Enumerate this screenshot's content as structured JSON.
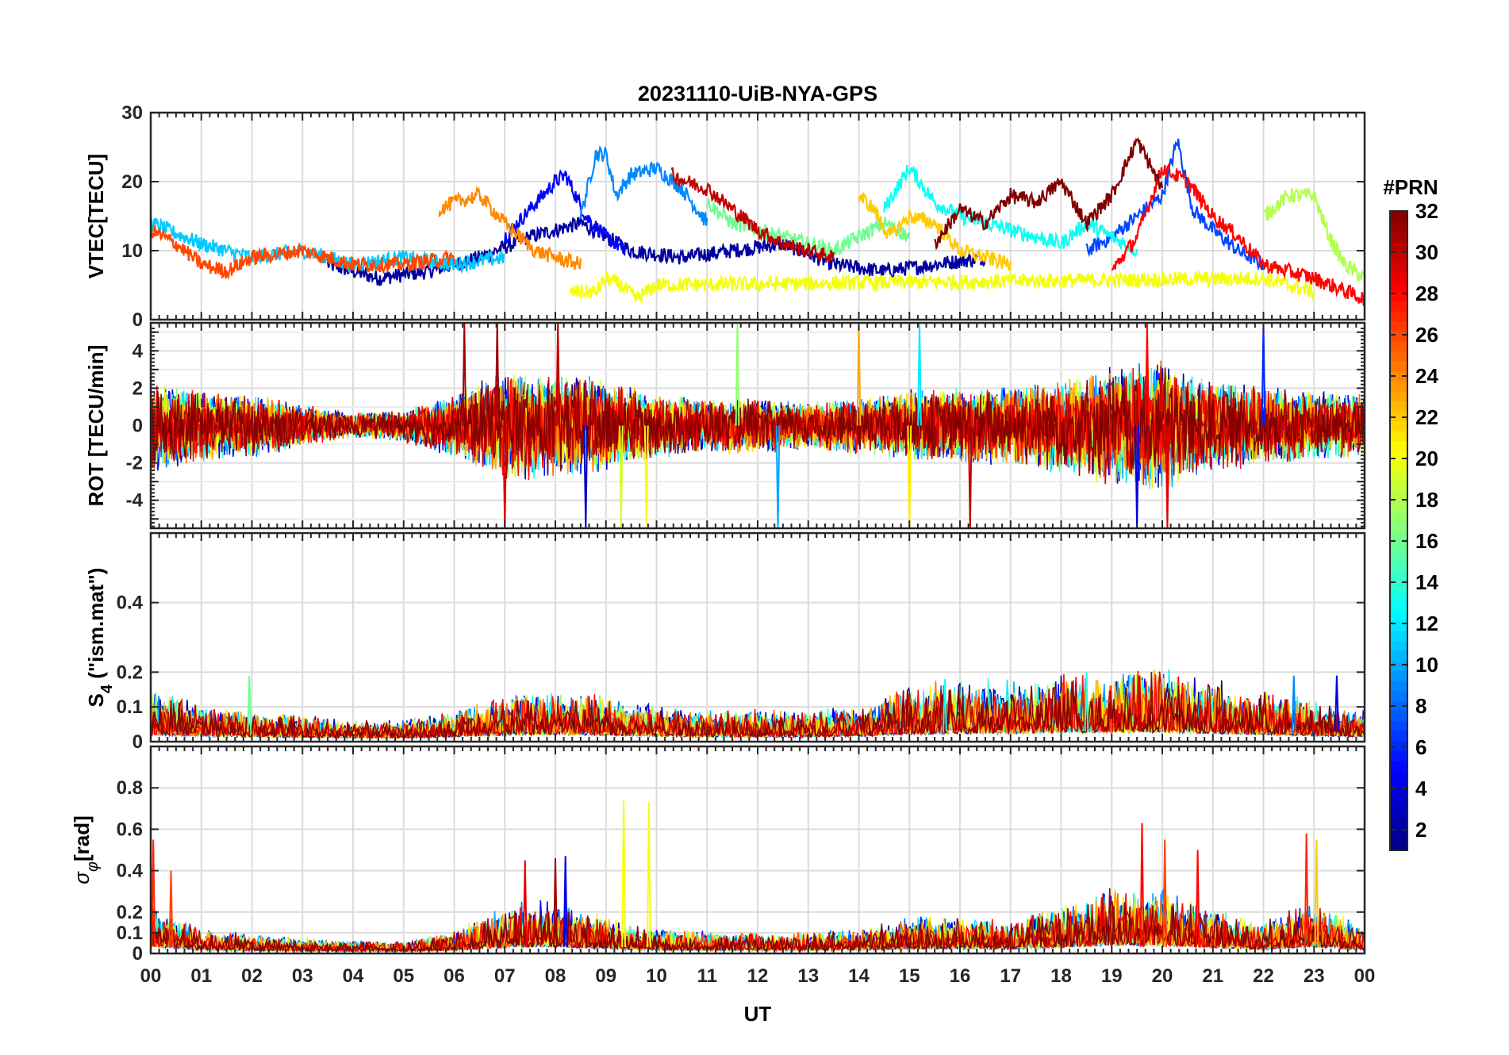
{
  "chart_data": {
    "type": "line",
    "title": "20231110-UiB-NYA-GPS",
    "xlabel": "UT",
    "x_ticks": [
      "00",
      "01",
      "02",
      "03",
      "04",
      "05",
      "06",
      "07",
      "08",
      "09",
      "10",
      "11",
      "12",
      "13",
      "14",
      "15",
      "16",
      "17",
      "18",
      "19",
      "20",
      "21",
      "22",
      "23",
      "00"
    ],
    "xlim": [
      0,
      24
    ],
    "colorbar": {
      "title": "#PRN",
      "range": [
        1,
        32
      ],
      "tick_labels": [
        "2",
        "4",
        "6",
        "8",
        "10",
        "12",
        "14",
        "16",
        "18",
        "20",
        "22",
        "24",
        "26",
        "28",
        "30",
        "32"
      ],
      "colormap": "jet"
    },
    "panels": [
      {
        "ylabel": "VTEC[TECU]",
        "ylim": [
          0,
          30
        ],
        "y_ticks": [
          0,
          10,
          20,
          30
        ],
        "y_tick_labels": [
          "0",
          "10",
          "20",
          "30"
        ],
        "description_series": "per-PRN VTEC traces",
        "series": [
          {
            "name": "PRN 2",
            "prn": 2,
            "x": [
              3.5,
              4.5,
              5.5,
              6.5,
              7.5,
              8.5,
              9.5,
              10.5,
              11.5,
              12.5,
              13.5,
              14.5,
              15.5,
              16.5
            ],
            "values": [
              8,
              6,
              7,
              9,
              12,
              14,
              10,
              9,
              10,
              11,
              8,
              7,
              8,
              9
            ]
          },
          {
            "name": "PRN 5",
            "prn": 5,
            "x": [
              7,
              7.5,
              8,
              8.2,
              8.6,
              9,
              9.4
            ],
            "values": [
              12,
              16,
              20,
              21,
              15,
              12,
              10
            ]
          },
          {
            "name": "PRN 7",
            "prn": 7,
            "x": [
              18.5,
              19,
              19.5,
              20,
              20.3,
              20.6,
              21,
              21.5,
              22
            ],
            "values": [
              10,
              12,
              15,
              18,
              26,
              16,
              13,
              10,
              8
            ]
          },
          {
            "name": "PRN 9",
            "prn": 9,
            "x": [
              8.5,
              8.8,
              9,
              9.2,
              9.5,
              10,
              10.5,
              11
            ],
            "values": [
              15,
              24,
              24,
              18,
              21,
              22,
              19,
              14
            ]
          },
          {
            "name": "PRN 11",
            "prn": 11,
            "x": [
              0,
              1,
              1.5,
              2,
              3,
              4,
              5,
              6,
              7
            ],
            "values": [
              14,
              11,
              10,
              9,
              10,
              8,
              9,
              8,
              9
            ]
          },
          {
            "name": "PRN 13",
            "prn": 13,
            "x": [
              14.5,
              15,
              15.5,
              16,
              16.5,
              17,
              17.5,
              18,
              18.5,
              19,
              19.5
            ],
            "values": [
              16,
              22,
              17,
              15,
              14,
              13,
              12,
              11,
              14,
              12,
              10
            ]
          },
          {
            "name": "PRN 16",
            "prn": 16,
            "x": [
              11,
              11.5,
              12,
              12.5,
              13,
              13.5,
              14,
              14.5,
              15
            ],
            "values": [
              17,
              14,
              13,
              12,
              11,
              10,
              12,
              14,
              12
            ]
          },
          {
            "name": "PRN 18",
            "prn": 18,
            "x": [
              22,
              22.5,
              23,
              23.3,
              23.6,
              24
            ],
            "values": [
              15,
              18,
              18,
              12,
              8,
              6
            ]
          },
          {
            "name": "PRN 20",
            "prn": 20,
            "x": [
              8.3,
              8.8,
              9,
              9.3,
              9.6,
              10,
              22,
              23
            ],
            "values": [
              4,
              4,
              6,
              5,
              3,
              5,
              6,
              4
            ]
          },
          {
            "name": "PRN 22",
            "prn": 22,
            "x": [
              14,
              14.3,
              14.6,
              15,
              15.5,
              16,
              17
            ],
            "values": [
              18,
              16,
              12,
              15,
              14,
              10,
              8
            ]
          },
          {
            "name": "PRN 24",
            "prn": 24,
            "x": [
              5.7,
              6,
              6.5,
              7,
              7.3,
              7.6,
              8,
              8.5
            ],
            "values": [
              16,
              17,
              18,
              14,
              12,
              10,
              9,
              8
            ]
          },
          {
            "name": "PRN 26",
            "prn": 26,
            "x": [
              0,
              0.5,
              1,
              1.5,
              2,
              3,
              4,
              5,
              6
            ],
            "values": [
              13,
              11,
              8,
              7,
              9,
              10,
              8,
              8,
              9
            ]
          },
          {
            "name": "PRN 28",
            "prn": 28,
            "x": [
              19,
              19.5,
              20,
              20.5,
              21,
              21.5,
              22,
              23,
              24
            ],
            "values": [
              7,
              12,
              22,
              20,
              15,
              12,
              8,
              6,
              3
            ]
          },
          {
            "name": "PRN 30",
            "prn": 30,
            "x": [
              10.3,
              10.6,
              11,
              11.5,
              12,
              12.5,
              13,
              13.5
            ],
            "values": [
              21,
              20,
              19,
              16,
              13,
              11,
              10,
              9
            ]
          },
          {
            "name": "PRN 32",
            "prn": 32,
            "x": [
              15.5,
              16,
              16.5,
              17,
              17.5,
              18,
              18.5,
              19,
              19.5,
              20
            ],
            "values": [
              11,
              16,
              14,
              18,
              17,
              20,
              14,
              18,
              26,
              19
            ]
          }
        ]
      },
      {
        "ylabel": "ROT [TECU/min]",
        "ylim": [
          -5.5,
          5.5
        ],
        "y_ticks": [
          -4,
          -2,
          0,
          2,
          4
        ],
        "y_tick_labels": [
          "-4",
          "-2",
          "0",
          "2",
          "4"
        ],
        "envelope_note": "ROT fluctuation amplitude (TECU/min) by hour",
        "envelope_x": [
          0,
          1,
          2,
          3,
          4,
          5,
          6,
          7,
          8,
          9,
          10,
          11,
          12,
          13,
          14,
          15,
          16,
          17,
          18,
          19,
          20,
          21,
          22,
          23,
          24
        ],
        "envelope_amp": [
          2.5,
          2.0,
          1.8,
          1.2,
          0.7,
          0.9,
          1.8,
          3.0,
          3.0,
          2.6,
          1.8,
          1.5,
          1.6,
          1.3,
          1.6,
          2.0,
          2.1,
          2.2,
          2.6,
          3.4,
          3.6,
          2.6,
          2.2,
          2.0,
          1.8
        ],
        "spikes": [
          {
            "x": 6.2,
            "value": 5.5,
            "prn": 31
          },
          {
            "x": 6.85,
            "value": 5.5,
            "prn": 31
          },
          {
            "x": 7.0,
            "value": -5.5,
            "prn": 29
          },
          {
            "x": 8.05,
            "value": 5.5,
            "prn": 30
          },
          {
            "x": 8.6,
            "value": -5.5,
            "prn": 3
          },
          {
            "x": 9.3,
            "value": -5.5,
            "prn": 19
          },
          {
            "x": 9.8,
            "value": -5.3,
            "prn": 20
          },
          {
            "x": 11.6,
            "value": 5.5,
            "prn": 17
          },
          {
            "x": 12.4,
            "value": -5.5,
            "prn": 10
          },
          {
            "x": 14.0,
            "value": 5.5,
            "prn": 23
          },
          {
            "x": 15.2,
            "value": 5.5,
            "prn": 12
          },
          {
            "x": 15.0,
            "value": -5.5,
            "prn": 21
          },
          {
            "x": 16.2,
            "value": -5.5,
            "prn": 30
          },
          {
            "x": 19.5,
            "value": -5.5,
            "prn": 4
          },
          {
            "x": 19.7,
            "value": 5.5,
            "prn": 28
          },
          {
            "x": 20.1,
            "value": -5.5,
            "prn": 29
          },
          {
            "x": 22.0,
            "value": 5.5,
            "prn": 6
          }
        ]
      },
      {
        "ylabel": "S4 (\"ism.mat\")",
        "ylabel_main": "S",
        "ylabel_sub": "4",
        "ylabel_rest": " (\"ism.mat\")",
        "ylim": [
          0,
          0.6
        ],
        "y_ticks": [
          0,
          0.1,
          0.2,
          0.4
        ],
        "y_tick_labels": [
          "0",
          "0.1",
          "0.2",
          "0.4"
        ],
        "envelope_note": "typical S4 level by hour",
        "envelope_x": [
          0,
          1,
          2,
          3,
          4,
          5,
          6,
          7,
          8,
          9,
          10,
          11,
          12,
          13,
          14,
          15,
          16,
          17,
          18,
          19,
          20,
          21,
          22,
          23,
          24
        ],
        "envelope_amp": [
          0.1,
          0.07,
          0.06,
          0.05,
          0.04,
          0.04,
          0.06,
          0.09,
          0.1,
          0.09,
          0.07,
          0.06,
          0.06,
          0.06,
          0.07,
          0.11,
          0.12,
          0.12,
          0.13,
          0.14,
          0.14,
          0.12,
          0.1,
          0.08,
          0.06
        ],
        "spikes": [
          {
            "x": 1.95,
            "value": 0.19,
            "prn": 16
          },
          {
            "x": 18.5,
            "value": 0.2,
            "prn": 14
          },
          {
            "x": 19.55,
            "value": 0.19,
            "prn": 30
          },
          {
            "x": 23.45,
            "value": 0.19,
            "prn": 4
          },
          {
            "x": 22.6,
            "value": 0.19,
            "prn": 9
          },
          {
            "x": 15.7,
            "value": 0.18,
            "prn": 13
          }
        ]
      },
      {
        "ylabel": "σφ[rad]",
        "ylabel_main": "σ",
        "ylabel_sub": "φ",
        "ylabel_rest": "[rad]",
        "ylim": [
          0,
          1.0
        ],
        "y_ticks": [
          0,
          0.1,
          0.2,
          0.4,
          0.6,
          0.8
        ],
        "y_tick_labels": [
          "0",
          "0.1",
          "0.2",
          "0.4",
          "0.6",
          "0.8"
        ],
        "envelope_note": "typical phase scintillation level by hour",
        "envelope_x": [
          0,
          1,
          2,
          3,
          4,
          5,
          6,
          7,
          8,
          9,
          10,
          11,
          12,
          13,
          14,
          15,
          16,
          17,
          18,
          19,
          20,
          21,
          22,
          23,
          24
        ],
        "envelope_amp": [
          0.18,
          0.08,
          0.06,
          0.05,
          0.04,
          0.04,
          0.07,
          0.16,
          0.18,
          0.12,
          0.08,
          0.07,
          0.07,
          0.07,
          0.08,
          0.12,
          0.12,
          0.11,
          0.16,
          0.22,
          0.22,
          0.15,
          0.1,
          0.18,
          0.08
        ],
        "spikes": [
          {
            "x": 0.05,
            "value": 0.55,
            "prn": 27
          },
          {
            "x": 0.4,
            "value": 0.4,
            "prn": 26
          },
          {
            "x": 7.4,
            "value": 0.45,
            "prn": 29
          },
          {
            "x": 8.0,
            "value": 0.46,
            "prn": 31
          },
          {
            "x": 8.2,
            "value": 0.47,
            "prn": 4
          },
          {
            "x": 9.35,
            "value": 0.74,
            "prn": 20
          },
          {
            "x": 9.85,
            "value": 0.73,
            "prn": 20
          },
          {
            "x": 19.6,
            "value": 0.63,
            "prn": 28
          },
          {
            "x": 20.05,
            "value": 0.55,
            "prn": 26
          },
          {
            "x": 20.7,
            "value": 0.5,
            "prn": 28
          },
          {
            "x": 22.85,
            "value": 0.58,
            "prn": 27
          },
          {
            "x": 23.05,
            "value": 0.55,
            "prn": 22
          }
        ]
      }
    ]
  }
}
